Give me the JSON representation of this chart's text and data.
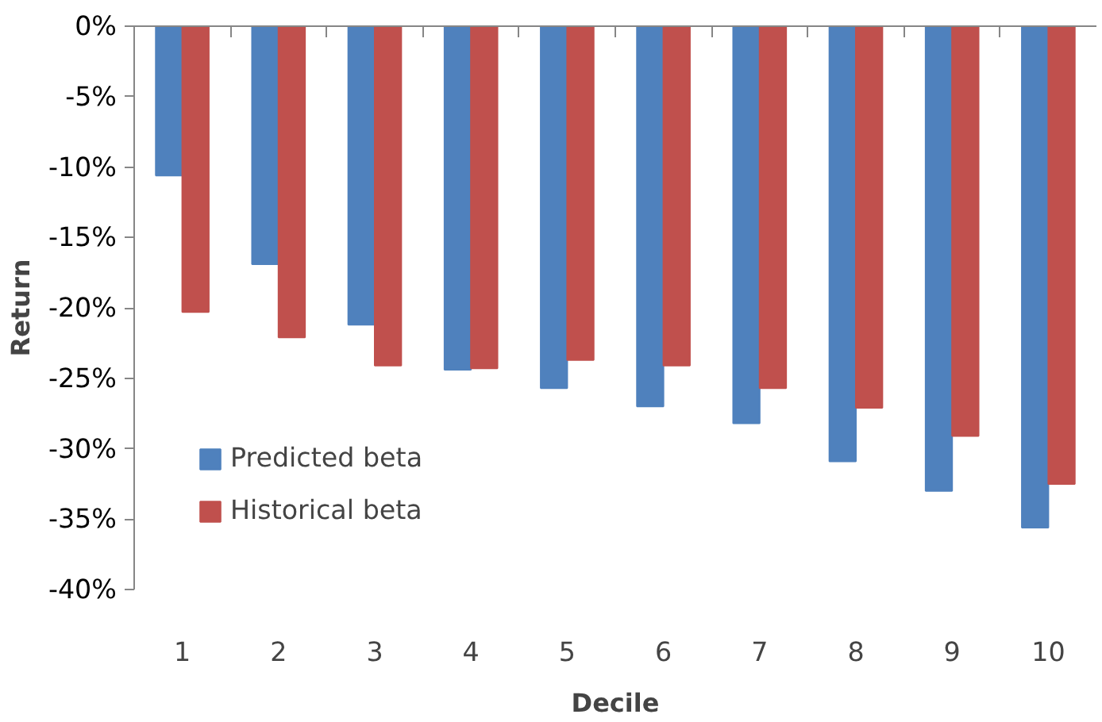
{
  "chart_data": {
    "type": "bar",
    "xlabel": "Decile",
    "ylabel": "Return",
    "categories": [
      "1",
      "2",
      "3",
      "4",
      "5",
      "6",
      "7",
      "8",
      "9",
      "10"
    ],
    "series": [
      {
        "name": "Predicted beta",
        "color": "#4f81bd",
        "values": [
          -10.6,
          -16.9,
          -21.2,
          -24.4,
          -25.7,
          -27.0,
          -28.2,
          -30.9,
          -33.0,
          -35.6
        ]
      },
      {
        "name": "Historical beta",
        "color": "#c0504d",
        "values": [
          -20.3,
          -22.1,
          -24.1,
          -24.3,
          -23.7,
          -24.1,
          -25.7,
          -27.1,
          -29.1,
          -32.5
        ]
      }
    ],
    "ylim": [
      -40,
      0
    ],
    "yticks": [
      {
        "value": 0,
        "label": "0%"
      },
      {
        "value": -5,
        "label": "-5%"
      },
      {
        "value": -10,
        "label": "-10%"
      },
      {
        "value": -15,
        "label": "-15%"
      },
      {
        "value": -20,
        "label": "-20%"
      },
      {
        "value": -25,
        "label": "-25%"
      },
      {
        "value": -30,
        "label": "-30%"
      },
      {
        "value": -35,
        "label": "-35%"
      },
      {
        "value": -40,
        "label": "-40%"
      }
    ],
    "grid": false,
    "legend": "bottom left"
  }
}
